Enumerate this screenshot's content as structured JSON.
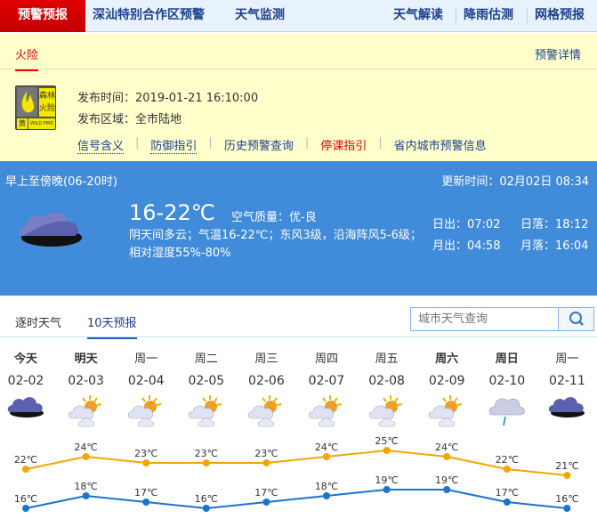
{
  "nav": {
    "active": "预警预报",
    "left": [
      "深汕特别合作区预警",
      "天气监测"
    ],
    "right": [
      "天气解读",
      "降雨估测",
      "网格预报"
    ]
  },
  "warning": {
    "tab": "火险",
    "details": "预警详情",
    "signal": {
      "name": "森林火险",
      "level": "黄",
      "en": "WILD FIRE",
      "color": "#f3e600"
    },
    "time_label": "发布时间：",
    "time": "2019-01-21 16:10:00",
    "area_label": "发布区域：",
    "area": "全市陆地",
    "links": [
      "信号含义",
      "防御指引",
      "历史预警查询",
      "停课指引",
      "省内城市预警信息"
    ]
  },
  "now": {
    "period": "早上至傍晚(06-20时)",
    "update": "更新时间：02月02日 08:34",
    "temp": "16-22℃",
    "aqi": "空气质量：优-良",
    "desc": "阴天间多云；气温16-22℃；东风3级，沿海阵风5-6级；相对湿度55%-80%",
    "icon": "overcast-icon",
    "sunrise": "日出：07:02",
    "sunset": "日落：18:12",
    "moonrise": "月出：04:58",
    "moonset": "月落：16:04"
  },
  "tabs": [
    "逐时天气",
    "10天预报"
  ],
  "search": {
    "placeholder": "城市天气查询"
  },
  "forecast": [
    {
      "day": "今天",
      "date": "02-02",
      "icon": "overcast",
      "bold": true
    },
    {
      "day": "明天",
      "date": "02-03",
      "icon": "partly-cloudy",
      "bold": true
    },
    {
      "day": "周一",
      "date": "02-04",
      "icon": "partly-cloudy"
    },
    {
      "day": "周二",
      "date": "02-05",
      "icon": "partly-cloudy"
    },
    {
      "day": "周三",
      "date": "02-06",
      "icon": "partly-cloudy"
    },
    {
      "day": "周四",
      "date": "02-07",
      "icon": "partly-cloudy"
    },
    {
      "day": "周五",
      "date": "02-08",
      "icon": "partly-cloudy"
    },
    {
      "day": "周六",
      "date": "02-09",
      "icon": "partly-cloudy",
      "bold": true
    },
    {
      "day": "周日",
      "date": "02-10",
      "icon": "light-rain",
      "bold": true
    },
    {
      "day": "周一",
      "date": "02-11",
      "icon": "overcast"
    }
  ],
  "chart_data": {
    "type": "line",
    "categories": [
      "02-02",
      "02-03",
      "02-04",
      "02-05",
      "02-06",
      "02-07",
      "02-08",
      "02-09",
      "02-10",
      "02-11"
    ],
    "series": [
      {
        "values": [
          22,
          24,
          23,
          23,
          23,
          24,
          25,
          24,
          22,
          21
        ],
        "color": "#f6a500"
      },
      {
        "values": [
          16,
          18,
          17,
          16,
          17,
          18,
          19,
          19,
          17,
          16
        ],
        "color": "#1a73d1"
      }
    ],
    "unit": "℃"
  }
}
